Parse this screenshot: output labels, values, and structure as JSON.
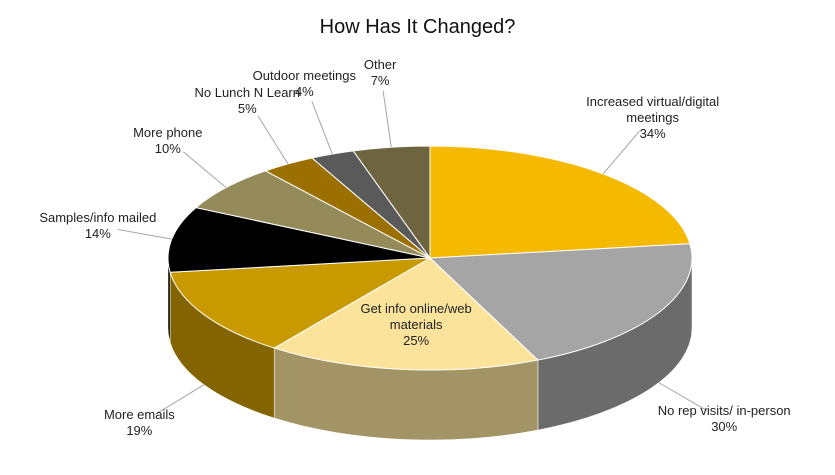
{
  "chart_data": {
    "type": "pie",
    "title": "How Has It Changed?",
    "categories": [
      "Increased virtual/digital meetings",
      "No rep visits/ in-person",
      "Get info online/web materials",
      "More emails",
      "Samples/info mailed",
      "More phone",
      "No Lunch N Learn",
      "Outdoor meetings",
      "Other"
    ],
    "values": [
      34,
      30,
      25,
      19,
      14,
      10,
      5,
      4,
      7
    ],
    "value_labels": [
      "34%",
      "30%",
      "25%",
      "19%",
      "14%",
      "10%",
      "5%",
      "4%",
      "7%"
    ],
    "colors": [
      "#f5b900",
      "#a5a5a5",
      "#fbe39c",
      "#c99a00",
      "#000000",
      "#958a5a",
      "#9c7000",
      "#5a5a5a",
      "#6e6440"
    ]
  }
}
